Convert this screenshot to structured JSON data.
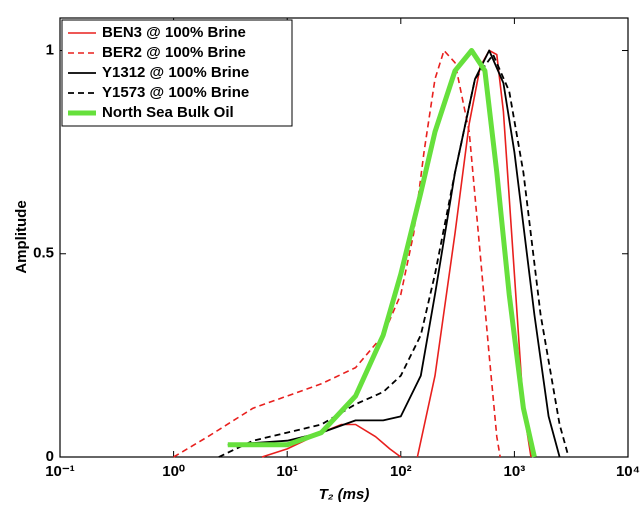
{
  "chart_data": {
    "type": "line",
    "xlabel": "T₂ (ms)",
    "ylabel": "Amplitude",
    "xscale": "log",
    "xlim": [
      0.1,
      10000
    ],
    "ylim": [
      0,
      1.08
    ],
    "xticks": [
      {
        "value": 0.1,
        "label": "10⁻¹"
      },
      {
        "value": 1,
        "label": "10⁰"
      },
      {
        "value": 10,
        "label": "10¹"
      },
      {
        "value": 100,
        "label": "10²"
      },
      {
        "value": 1000,
        "label": "10³"
      },
      {
        "value": 10000,
        "label": "10⁴"
      }
    ],
    "yticks": [
      0,
      0.5,
      1
    ],
    "legend": "upper-left",
    "series": [
      {
        "name": "BEN3 @ 100% Brine",
        "color": "#e8201e",
        "linestyle": "solid",
        "linewidth": 1.6,
        "x": [
          6,
          10,
          20,
          30,
          40,
          60,
          80,
          100,
          null,
          140,
          200,
          300,
          400,
          500,
          600,
          700,
          800,
          1000,
          1200,
          1400
        ],
        "values": [
          0,
          0.02,
          0.06,
          0.08,
          0.08,
          0.05,
          0.02,
          0,
          null,
          0,
          0.2,
          0.55,
          0.82,
          0.96,
          1.0,
          0.99,
          0.85,
          0.45,
          0.12,
          0
        ]
      },
      {
        "name": "BER2 @ 100% Brine",
        "color": "#e8201e",
        "linestyle": "dashed",
        "linewidth": 1.6,
        "x": [
          1,
          2,
          5,
          10,
          20,
          40,
          70,
          100,
          130,
          160,
          200,
          240,
          300,
          400,
          500,
          600,
          700,
          750
        ],
        "values": [
          0,
          0.05,
          0.12,
          0.15,
          0.18,
          0.22,
          0.3,
          0.4,
          0.55,
          0.75,
          0.93,
          1.0,
          0.97,
          0.8,
          0.5,
          0.25,
          0.05,
          0
        ]
      },
      {
        "name": "Y1312 @ 100% Brine",
        "color": "#000000",
        "linestyle": "solid",
        "linewidth": 1.8,
        "x": [
          3,
          10,
          20,
          40,
          70,
          100,
          150,
          200,
          300,
          450,
          600,
          800,
          1000,
          1500,
          2000,
          2500
        ],
        "values": [
          0.03,
          0.04,
          0.06,
          0.09,
          0.09,
          0.1,
          0.2,
          0.4,
          0.7,
          0.93,
          1.0,
          0.92,
          0.75,
          0.35,
          0.1,
          0
        ]
      },
      {
        "name": "Y1573 @ 100% Brine",
        "color": "#000000",
        "linestyle": "dashed",
        "linewidth": 1.8,
        "x": [
          2.5,
          5,
          10,
          20,
          40,
          70,
          100,
          150,
          200,
          300,
          450,
          650,
          900,
          1200,
          1700,
          2500,
          3000
        ],
        "values": [
          0,
          0.04,
          0.06,
          0.08,
          0.13,
          0.16,
          0.2,
          0.3,
          0.45,
          0.7,
          0.93,
          0.99,
          0.9,
          0.7,
          0.35,
          0.08,
          0
        ]
      },
      {
        "name": "North Sea Bulk Oil",
        "color": "#66e03c",
        "linestyle": "solid",
        "linewidth": 5,
        "x": [
          3,
          10,
          20,
          40,
          70,
          100,
          150,
          200,
          300,
          420,
          550,
          700,
          900,
          1200,
          1500
        ],
        "values": [
          0.03,
          0.03,
          0.06,
          0.15,
          0.3,
          0.45,
          0.65,
          0.8,
          0.95,
          1.0,
          0.95,
          0.7,
          0.4,
          0.12,
          0
        ]
      }
    ]
  }
}
